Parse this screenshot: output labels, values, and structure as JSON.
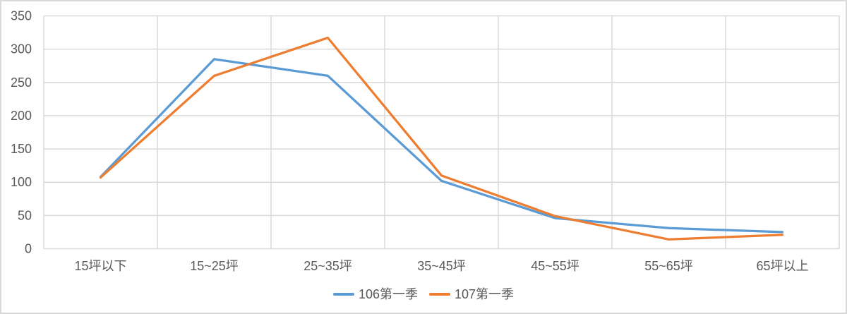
{
  "chart_data": {
    "type": "line",
    "title": "",
    "xlabel": "",
    "ylabel": "",
    "categories": [
      "15坪以下",
      "15~25坪",
      "25~35坪",
      "35~45坪",
      "45~55坪",
      "55~65坪",
      "65坪以上"
    ],
    "series": [
      {
        "name": "106第一季",
        "color": "#5B9BD5",
        "values": [
          108,
          285,
          260,
          102,
          46,
          31,
          25
        ]
      },
      {
        "name": "107第一季",
        "color": "#ED7D31",
        "values": [
          107,
          260,
          317,
          110,
          49,
          14,
          21
        ]
      }
    ],
    "ylim": [
      0,
      350
    ],
    "ytick_step": 50,
    "ytick_labels": [
      "0",
      "50",
      "100",
      "150",
      "200",
      "250",
      "300",
      "350"
    ],
    "grid": true,
    "legend_position": "bottom-center"
  },
  "colors": {
    "background": "#FFFFFF",
    "border": "#D9D9D9",
    "gridline": "#D9D9D9",
    "axis_text": "#595959"
  }
}
